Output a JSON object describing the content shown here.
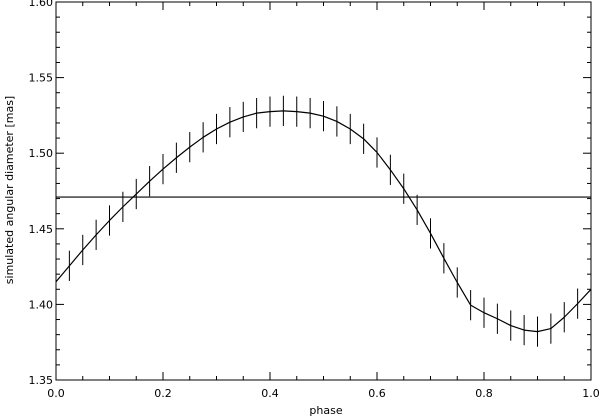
{
  "chart_data": {
    "type": "line",
    "title": "",
    "xlabel": "phase",
    "ylabel": "simulated angular diameter  [mas]",
    "xlim": [
      0.0,
      1.0
    ],
    "ylim": [
      1.35,
      1.6
    ],
    "x_ticks": [
      "0.0",
      "0.2",
      "0.4",
      "0.6",
      "0.8",
      "1.0"
    ],
    "y_ticks": [
      "1.35",
      "1.40",
      "1.45",
      "1.50",
      "1.55",
      "1.60"
    ],
    "grid": false,
    "legend": "none",
    "series": [
      {
        "style": "solid-line",
        "x": [
          0.0,
          0.025,
          0.05,
          0.075,
          0.1,
          0.125,
          0.15,
          0.175,
          0.2,
          0.225,
          0.25,
          0.275,
          0.3,
          0.325,
          0.35,
          0.375,
          0.4,
          0.425,
          0.45,
          0.475,
          0.5,
          0.525,
          0.55,
          0.575,
          0.6,
          0.625,
          0.65,
          0.675,
          0.7,
          0.725,
          0.75,
          0.775,
          0.8,
          0.825,
          0.85,
          0.875,
          0.9,
          0.925,
          0.95,
          0.975,
          1.0
        ],
        "y": [
          1.415,
          1.4255,
          1.436,
          1.446,
          1.4555,
          1.4645,
          1.473,
          1.4815,
          1.4895,
          1.497,
          1.504,
          1.5105,
          1.516,
          1.5205,
          1.524,
          1.5265,
          1.5275,
          1.528,
          1.5275,
          1.5265,
          1.5245,
          1.521,
          1.516,
          1.5095,
          1.5005,
          1.489,
          1.4765,
          1.4625,
          1.447,
          1.4305,
          1.4145,
          1.3995,
          1.3945,
          1.3905,
          1.386,
          1.383,
          1.382,
          1.384,
          1.3915,
          1.4005,
          1.41
        ]
      },
      {
        "style": "constant-line",
        "x": [
          0.0,
          1.0
        ],
        "y": [
          1.471,
          1.471
        ]
      }
    ],
    "error_bars": {
      "x": [
        0.0,
        0.025,
        0.05,
        0.075,
        0.1,
        0.125,
        0.15,
        0.175,
        0.2,
        0.225,
        0.25,
        0.275,
        0.3,
        0.325,
        0.35,
        0.375,
        0.4,
        0.425,
        0.45,
        0.475,
        0.5,
        0.525,
        0.55,
        0.575,
        0.6,
        0.625,
        0.65,
        0.675,
        0.7,
        0.725,
        0.75,
        0.775,
        0.8,
        0.825,
        0.85,
        0.875,
        0.9,
        0.925,
        0.95,
        0.975,
        1.0
      ],
      "half_width": 0.01
    },
    "line_color": "#000000",
    "background": "#ffffff"
  }
}
